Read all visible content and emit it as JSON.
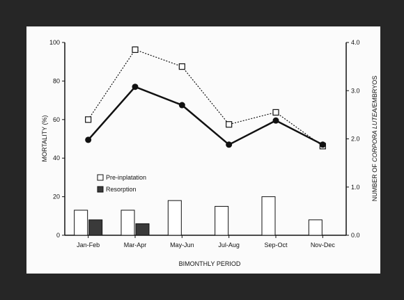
{
  "chart_data": {
    "type": "bar+line",
    "title": "",
    "xlabel": "BIMONTHLY PERIOD",
    "ylabel_left": "MORTALITY (%)",
    "ylabel_right_prefix": "NUMBER OF ",
    "ylabel_right_italic": "CORPORA LUTEA",
    "ylabel_right_suffix": "/EMBRYOS",
    "categories": [
      "Jan-Feb",
      "Mar-Apr",
      "May-Jun",
      "Jul-Aug",
      "Sep-Oct",
      "Nov-Dec"
    ],
    "ylim_left": [
      0,
      100
    ],
    "ylim_right": [
      0.0,
      4.0
    ],
    "left_ticks": [
      "0",
      "20",
      "40",
      "60",
      "80",
      "100"
    ],
    "right_ticks": [
      "0.0",
      "1.0",
      "2.0",
      "3.0",
      "4.0"
    ],
    "bars": [
      {
        "name": "Pre-inplatation",
        "axis": "left",
        "fill": "#ffffff",
        "values": [
          13,
          13,
          18,
          15,
          20,
          8
        ]
      },
      {
        "name": "Resorption",
        "axis": "left",
        "fill": "#3a3a3a",
        "values": [
          8,
          6,
          null,
          null,
          null,
          null
        ]
      }
    ],
    "lines": [
      {
        "axis": "right",
        "style": "dotted",
        "marker": "open-square",
        "values": [
          2.4,
          3.85,
          3.5,
          2.3,
          2.55,
          1.85
        ]
      },
      {
        "axis": "right",
        "style": "solid",
        "marker": "filled-circle",
        "values": [
          1.98,
          3.08,
          2.7,
          1.88,
          2.38,
          1.88
        ]
      }
    ],
    "legend_position": "center-left",
    "grid": false
  }
}
